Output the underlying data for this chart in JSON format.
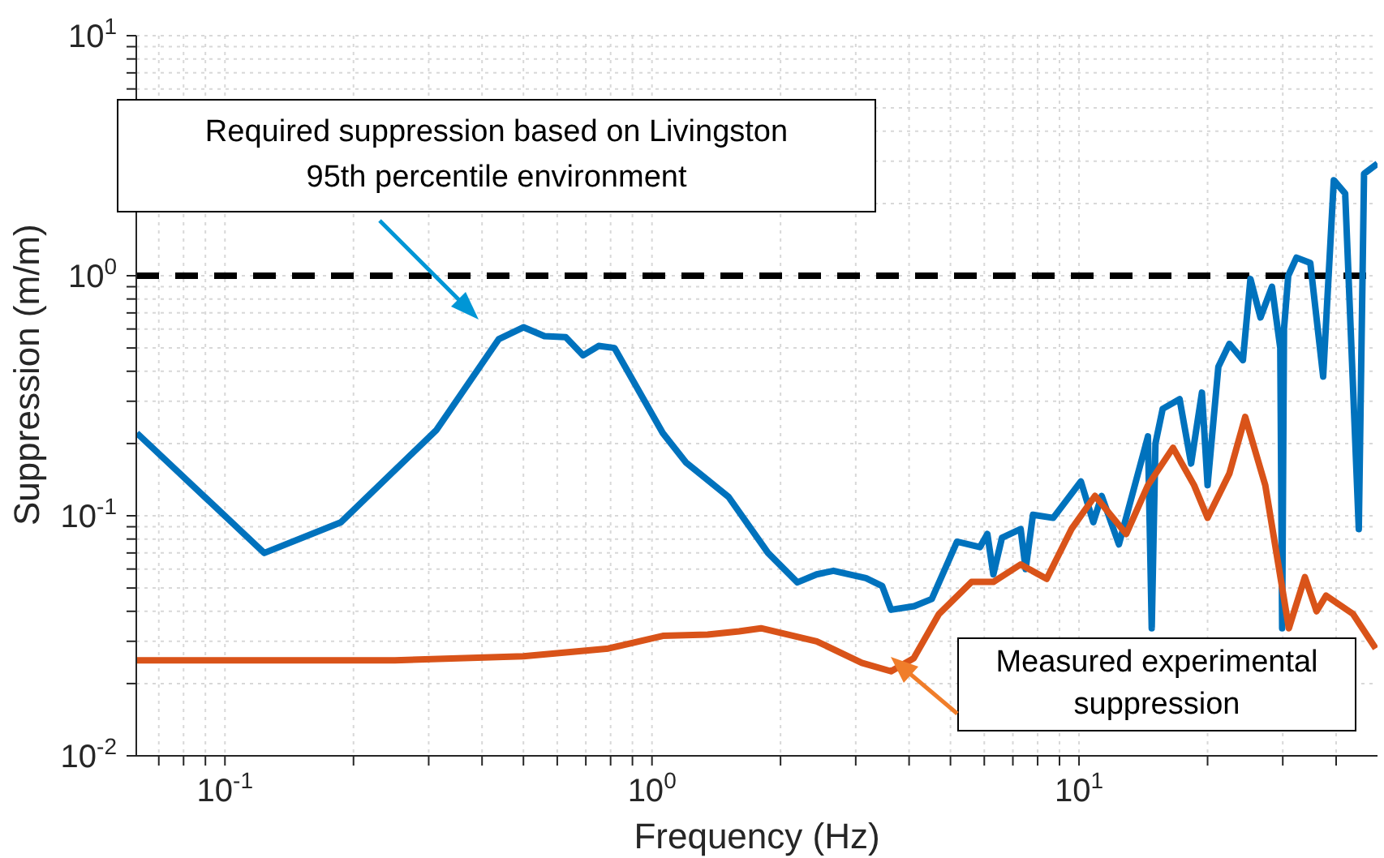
{
  "chart_data": {
    "type": "line",
    "xlabel": "Frequency (Hz)",
    "ylabel": "Suppression (m/m)",
    "log": "xy",
    "grid": true,
    "xlim": [
      0.062,
      50
    ],
    "ylim": [
      0.01,
      10
    ],
    "xticks": [
      {
        "value": 0.07,
        "label": null
      },
      {
        "value": 0.08,
        "label": null
      },
      {
        "value": 0.09,
        "label": null
      },
      {
        "value": 0.1,
        "label": "10$^{-1}$"
      },
      {
        "value": 0.2,
        "label": null
      },
      {
        "value": 0.3,
        "label": null
      },
      {
        "value": 0.4,
        "label": null
      },
      {
        "value": 0.5,
        "label": null
      },
      {
        "value": 0.6,
        "label": null
      },
      {
        "value": 0.7,
        "label": null
      },
      {
        "value": 0.8,
        "label": null
      },
      {
        "value": 0.9,
        "label": null
      },
      {
        "value": 1,
        "label": "10$^{0}$"
      },
      {
        "value": 2,
        "label": null
      },
      {
        "value": 3,
        "label": null
      },
      {
        "value": 4,
        "label": null
      },
      {
        "value": 5,
        "label": null
      },
      {
        "value": 6,
        "label": null
      },
      {
        "value": 7,
        "label": null
      },
      {
        "value": 8,
        "label": null
      },
      {
        "value": 9,
        "label": null
      },
      {
        "value": 10,
        "label": "10$^{1}$"
      },
      {
        "value": 20,
        "label": null
      },
      {
        "value": 30,
        "label": null
      },
      {
        "value": 40,
        "label": null
      }
    ],
    "yticks": [
      {
        "value": 0.01,
        "label": "10$^{-2}$"
      },
      {
        "value": 0.02,
        "label": null
      },
      {
        "value": 0.03,
        "label": null
      },
      {
        "value": 0.04,
        "label": null
      },
      {
        "value": 0.05,
        "label": null
      },
      {
        "value": 0.06,
        "label": null
      },
      {
        "value": 0.07,
        "label": null
      },
      {
        "value": 0.08,
        "label": null
      },
      {
        "value": 0.09,
        "label": null
      },
      {
        "value": 0.1,
        "label": "10$^{-1}$"
      },
      {
        "value": 0.2,
        "label": null
      },
      {
        "value": 0.3,
        "label": null
      },
      {
        "value": 0.4,
        "label": null
      },
      {
        "value": 0.5,
        "label": null
      },
      {
        "value": 0.6,
        "label": null
      },
      {
        "value": 0.7,
        "label": null
      },
      {
        "value": 0.8,
        "label": null
      },
      {
        "value": 0.9,
        "label": null
      },
      {
        "value": 1,
        "label": "10$^{0}$"
      },
      {
        "value": 2,
        "label": null
      },
      {
        "value": 3,
        "label": null
      },
      {
        "value": 4,
        "label": null
      },
      {
        "value": 5,
        "label": null
      },
      {
        "value": 6,
        "label": null
      },
      {
        "value": 7,
        "label": null
      },
      {
        "value": 8,
        "label": null
      },
      {
        "value": 9,
        "label": null
      },
      {
        "value": 10,
        "label": "10$^{1}$"
      }
    ],
    "ref_lines": [
      {
        "axis": "y",
        "value": 1,
        "color": "#000000",
        "line_style": "dashed"
      }
    ],
    "annotations": [
      "Required suppression based on Livingston 95th percentile environment",
      "Measured experimental suppression"
    ],
    "series": [
      {
        "color": "#0072bd",
        "x": [
          0.0622,
          0.1236,
          0.187,
          0.313,
          0.438,
          0.5,
          0.56,
          0.628,
          0.69,
          0.75,
          0.817,
          1.06,
          1.2,
          1.35,
          1.51,
          1.87,
          2.19,
          2.43,
          2.66,
          3.17,
          3.46,
          3.63,
          4.11,
          4.52,
          5.18,
          5.86,
          6.1,
          6.3,
          6.6,
          7.3,
          7.5,
          7.8,
          8.7,
          10.1,
          10.8,
          11.3,
          12.4,
          14.5,
          14.8,
          15.1,
          15.7,
          17.2,
          18.3,
          19.4,
          20.0,
          21.2,
          22.5,
          24.2,
          25.2,
          26.6,
          28.3,
          29.6,
          29.9,
          30.2,
          30.9,
          32.3,
          34.8,
          37.3,
          39.5,
          42,
          45.2,
          46.5,
          50
        ],
        "values": [
          0.221,
          0.07,
          0.094,
          0.228,
          0.545,
          0.61,
          0.56,
          0.555,
          0.466,
          0.51,
          0.5,
          0.221,
          0.167,
          0.141,
          0.12,
          0.07,
          0.0528,
          0.057,
          0.059,
          0.055,
          0.051,
          0.0406,
          0.042,
          0.045,
          0.078,
          0.074,
          0.084,
          0.057,
          0.081,
          0.088,
          0.06,
          0.101,
          0.098,
          0.139,
          0.094,
          0.121,
          0.076,
          0.214,
          0.034,
          0.2,
          0.279,
          0.306,
          0.165,
          0.326,
          0.134,
          0.418,
          0.52,
          0.445,
          0.97,
          0.67,
          0.9,
          0.5,
          0.034,
          0.6,
          1.0,
          1.19,
          1.13,
          0.38,
          2.5,
          2.2,
          0.088,
          2.66,
          2.93
        ]
      },
      {
        "color": "#d95319",
        "x": [
          0.0622,
          0.25,
          0.5,
          0.79,
          1.06,
          1.35,
          1.6,
          1.8,
          2.43,
          3.1,
          3.63,
          4.1,
          4.7,
          5.6,
          6.3,
          7.3,
          8.4,
          9.6,
          10.9,
          12.9,
          14.5,
          16.6,
          18.6,
          20.0,
          22.5,
          24.5,
          27.3,
          31,
          33.8,
          36,
          37.9,
          43.8,
          49.5
        ],
        "values": [
          0.025,
          0.025,
          0.026,
          0.028,
          0.0316,
          0.032,
          0.033,
          0.034,
          0.03,
          0.0244,
          0.0225,
          0.0255,
          0.039,
          0.053,
          0.053,
          0.0627,
          0.0546,
          0.088,
          0.121,
          0.084,
          0.134,
          0.192,
          0.134,
          0.098,
          0.15,
          0.258,
          0.134,
          0.034,
          0.0555,
          0.04,
          0.0465,
          0.039,
          0.028
        ]
      }
    ]
  }
}
